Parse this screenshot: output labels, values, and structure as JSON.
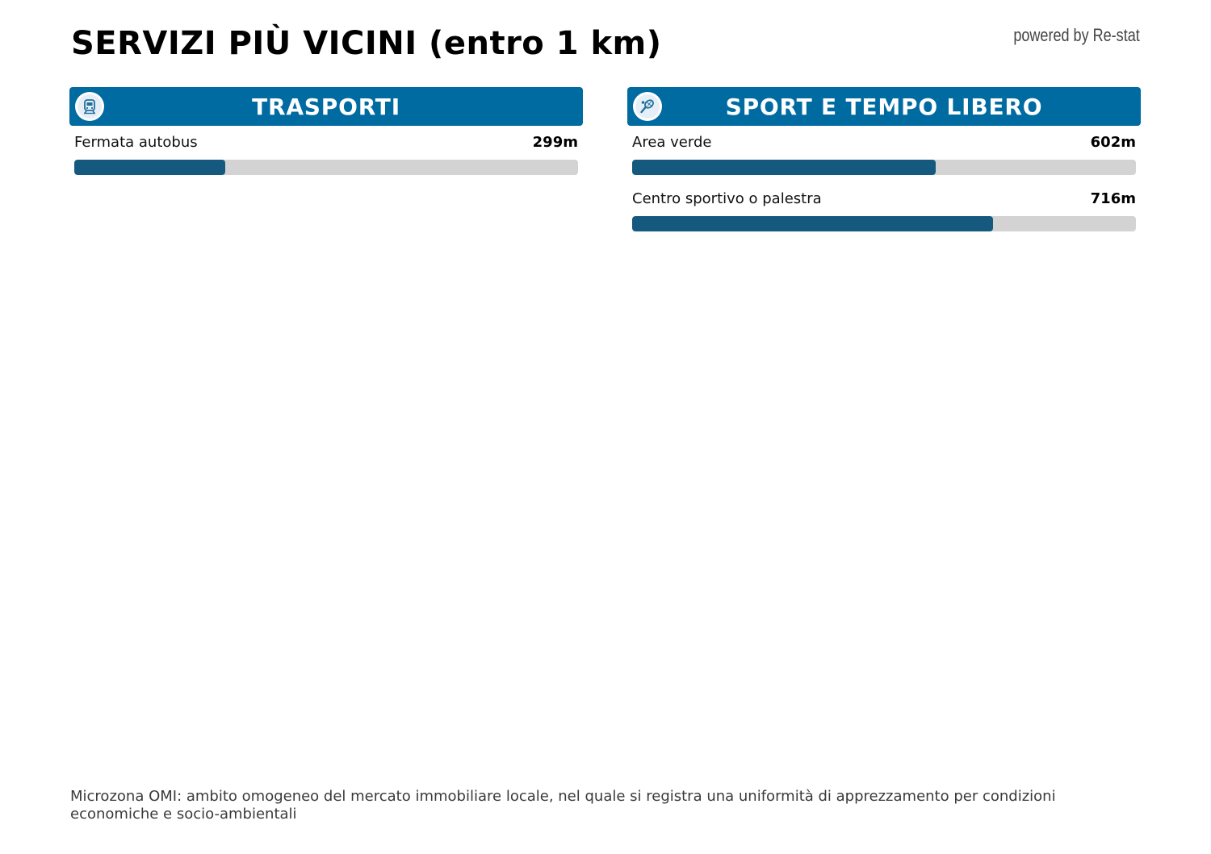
{
  "page": {
    "title": "SERVIZI PIÙ VICINI (entro 1 km)",
    "powered_by": "powered by Re-stat",
    "footnote": "Microzona OMI: ambito omogeneo del mercato immobiliare locale, nel quale si registra una uniformità di apprezzamento per condizioni economiche e socio-ambientali"
  },
  "colors": {
    "header_bg": "#006ba1",
    "bar_fill": "#155a7e",
    "bar_track": "#d3d3d3",
    "icon_glyph": "#1f6ea0"
  },
  "panels": [
    {
      "title": "TRASPORTI",
      "icon": "train-icon",
      "services": [
        {
          "name": "Fermata autobus",
          "distance": "299m",
          "level": 0.299
        }
      ]
    },
    {
      "title": "SPORT E TEMPO LIBERO",
      "icon": "tennis-icon",
      "services": [
        {
          "name": "Area verde",
          "distance": "602m",
          "level": 0.602
        },
        {
          "name": "Centro sportivo o palestra",
          "distance": "716m",
          "level": 0.716
        }
      ]
    }
  ]
}
